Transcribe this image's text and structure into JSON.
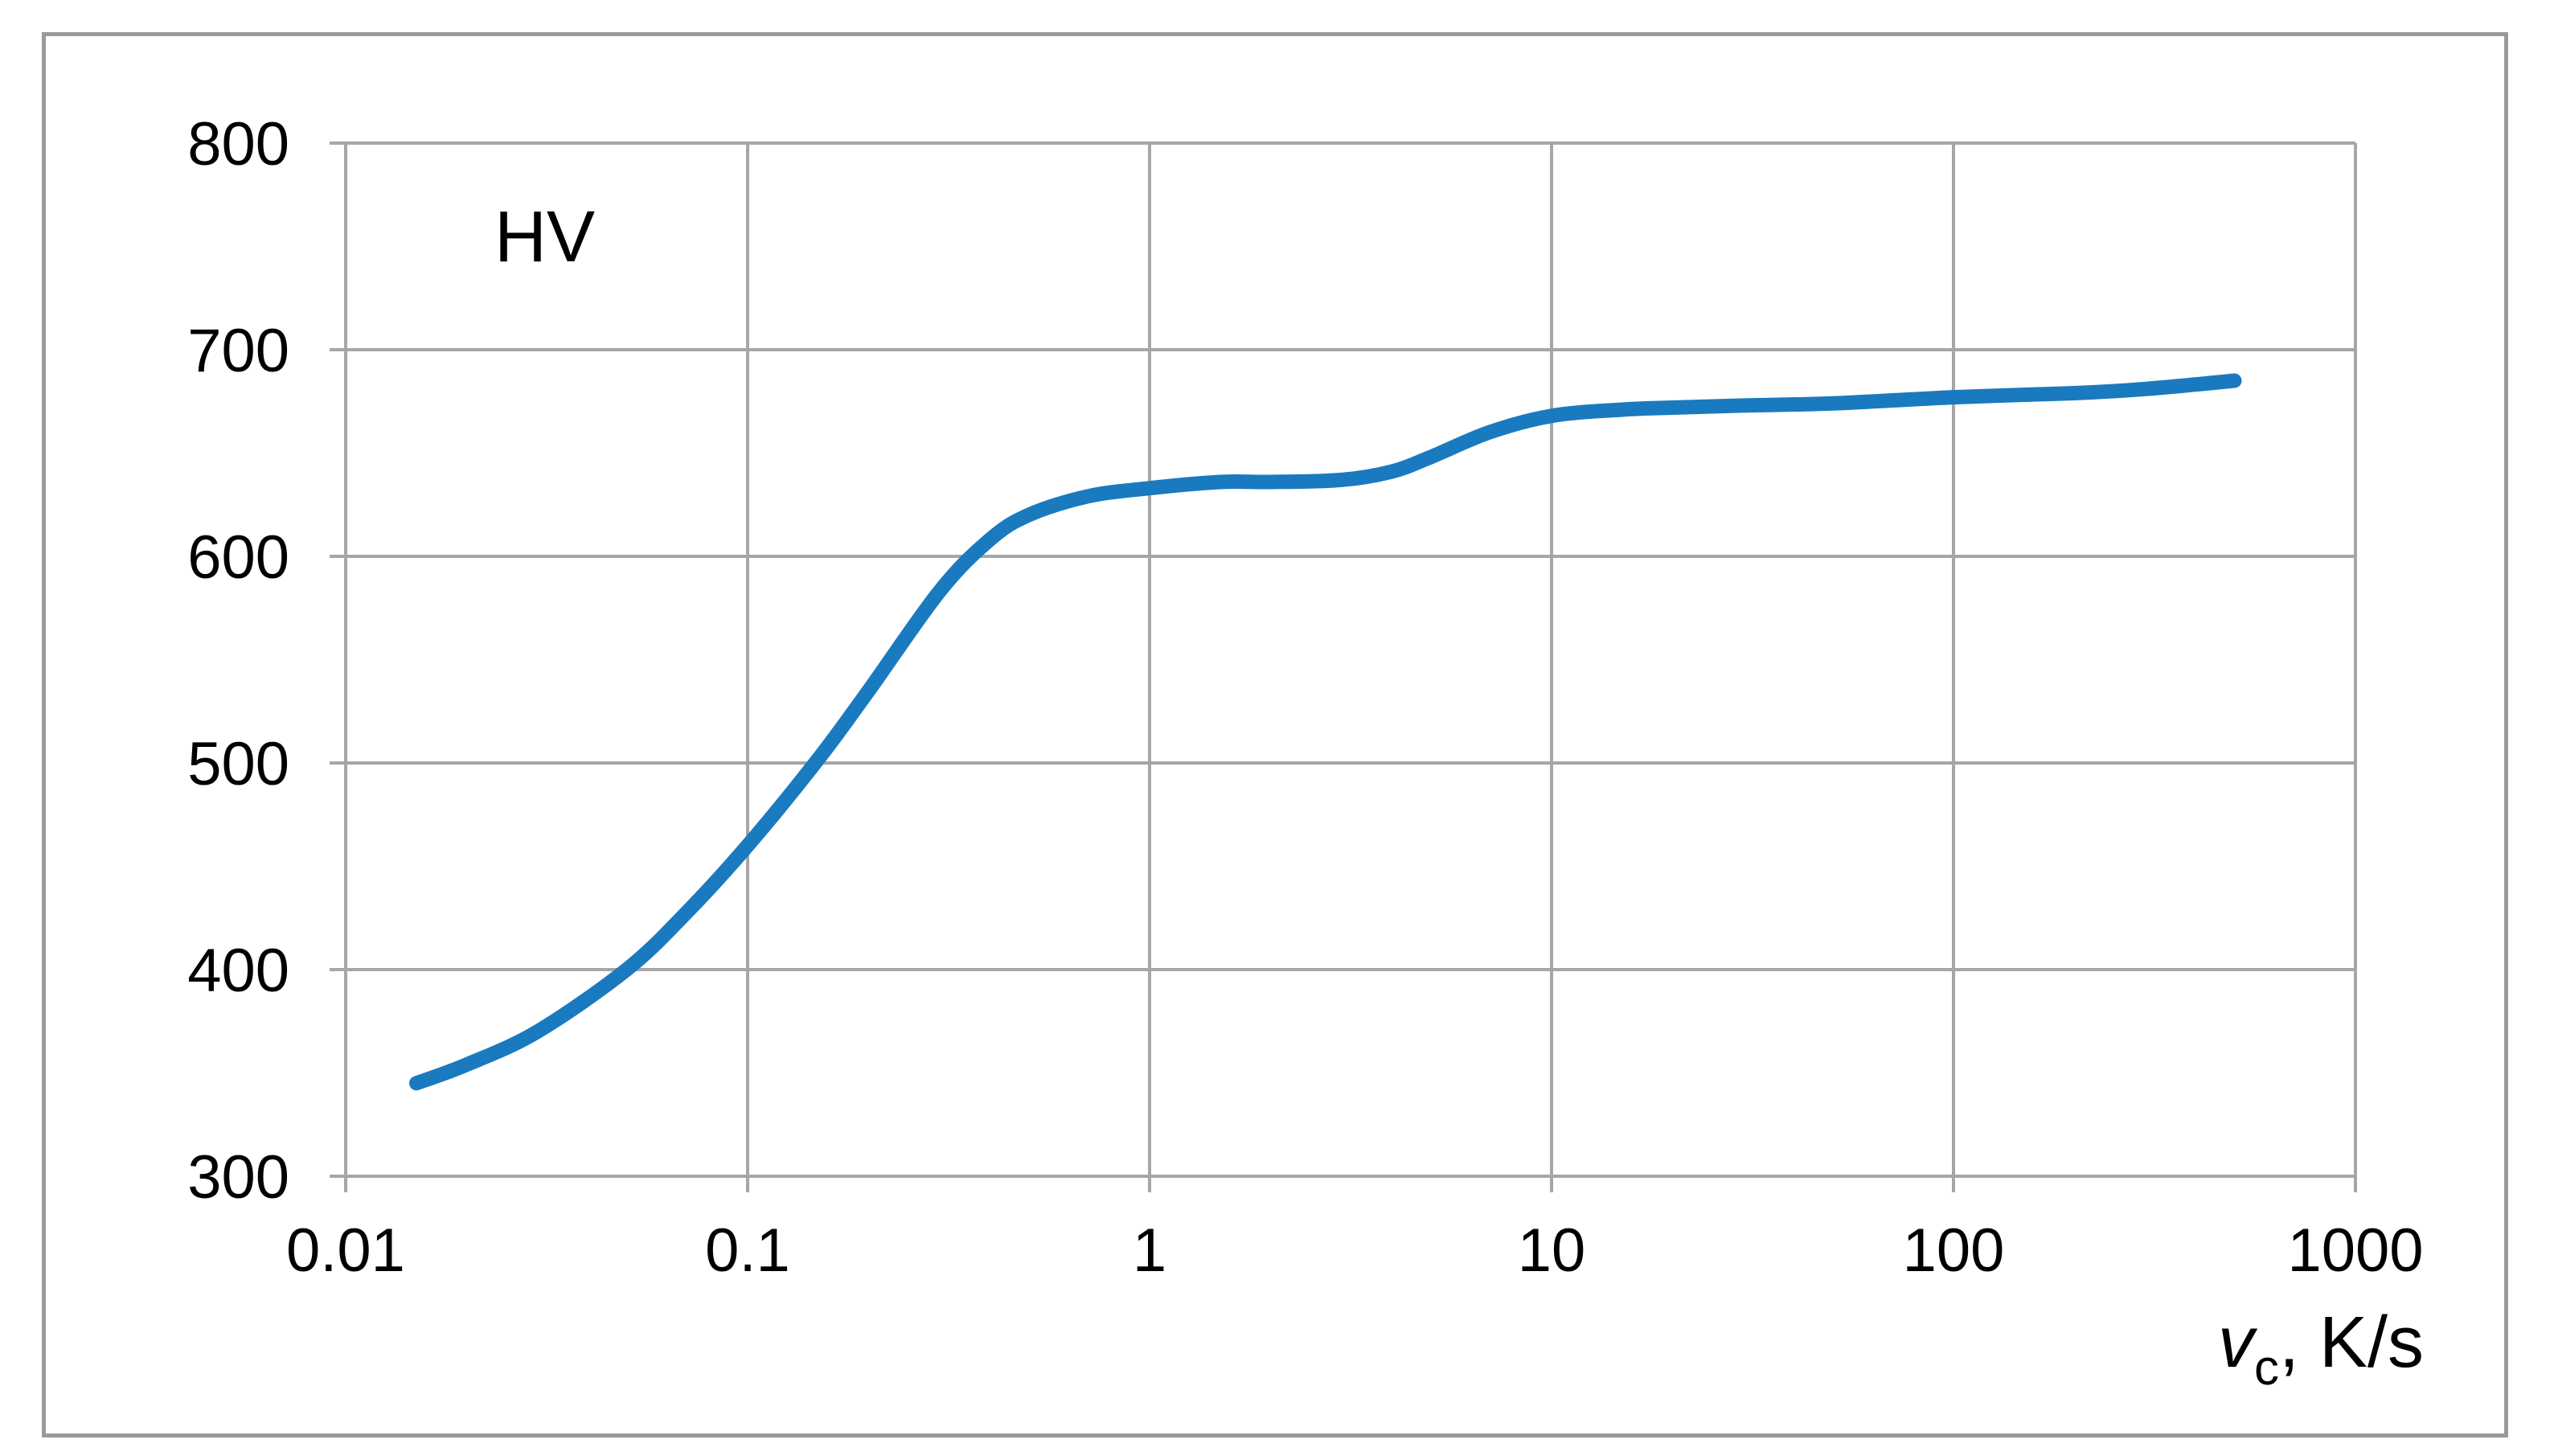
{
  "chart_data": {
    "type": "line",
    "xscale": "log",
    "xlim": [
      0.01,
      1000
    ],
    "ylim": [
      300,
      800
    ],
    "grid": true,
    "ylabel": "HV",
    "xlabel": {
      "symbol": "v",
      "subscript": "c",
      "unit": ", K/s"
    },
    "x_tick_labels": [
      "0.01",
      "0.1",
      "1",
      "10",
      "100",
      "1000"
    ],
    "x_ticks": [
      0.01,
      0.1,
      1,
      10,
      100,
      1000
    ],
    "y_tick_labels": [
      "300",
      "400",
      "500",
      "600",
      "700",
      "800"
    ],
    "y_ticks": [
      300,
      400,
      500,
      600,
      700,
      800
    ],
    "line_color": "#1a7abf",
    "grid_color": "#a6a6a6",
    "series": [
      {
        "x": [
          0.015,
          0.02,
          0.03,
          0.05,
          0.07,
          0.1,
          0.15,
          0.2,
          0.3,
          0.4,
          0.5,
          0.7,
          1,
          1.5,
          2,
          3,
          4,
          5,
          7,
          10,
          15,
          20,
          30,
          50,
          100,
          200,
          300,
          500
        ],
        "y": [
          345,
          354,
          370,
          400,
          427,
          460,
          502,
          535,
          583,
          608,
          620,
          629,
          633,
          636,
          636,
          637,
          641,
          648,
          660,
          668,
          671,
          672,
          673,
          674,
          677,
          679,
          681,
          685
        ]
      }
    ]
  }
}
